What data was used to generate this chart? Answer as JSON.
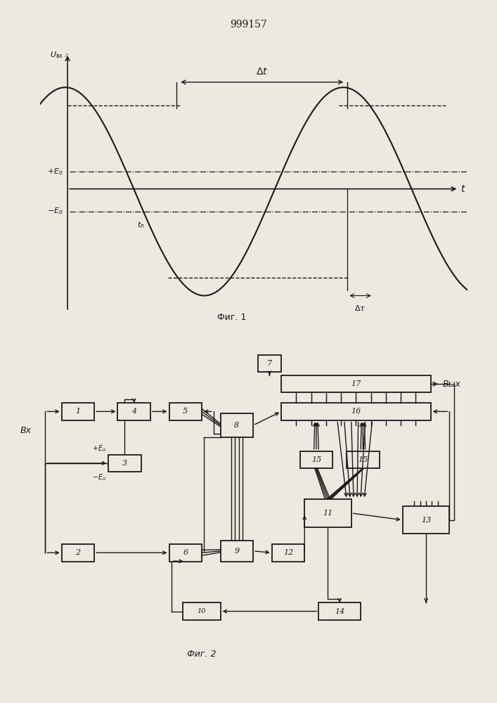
{
  "title": "999157",
  "fig1_label": "Фиг. 1",
  "fig2_label": "Фиг. 2",
  "bg_color": "#ede8e0",
  "lc": "#1a1a1a"
}
